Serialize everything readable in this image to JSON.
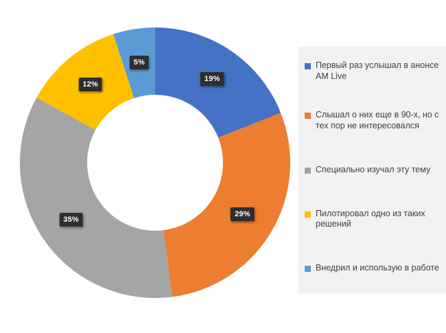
{
  "chart_data": {
    "type": "pie",
    "variant": "donut",
    "direction": "clockwise",
    "start_angle_deg": 0,
    "inner_radius_ratio": 0.5,
    "legend_position": "right",
    "title": "",
    "segments": [
      {
        "label": "Первый раз услышал в анонсе AM Live",
        "value": 19,
        "percent_label": "19%",
        "color": "#4472C4"
      },
      {
        "label": "Слышал о них еще в 90-х, но с тех пор не интересовался",
        "value": 29,
        "percent_label": "29%",
        "color": "#ED7D31"
      },
      {
        "label": "Специально изучал эту тему",
        "value": 35,
        "percent_label": "35%",
        "color": "#A5A5A5"
      },
      {
        "label": "Пилотировал одно из таких решений",
        "value": 12,
        "percent_label": "12%",
        "color": "#FFC000"
      },
      {
        "label": "Внедрил и использую в работе",
        "value": 5,
        "percent_label": "5%",
        "color": "#5B9BD5"
      }
    ]
  },
  "colors": {
    "background": "#FFFFFF",
    "legend_bg": "#F2F2F2",
    "legend_text": "#404040",
    "data_label_bg": "#3F3F3F",
    "data_label_text": "#FFFFFF"
  }
}
